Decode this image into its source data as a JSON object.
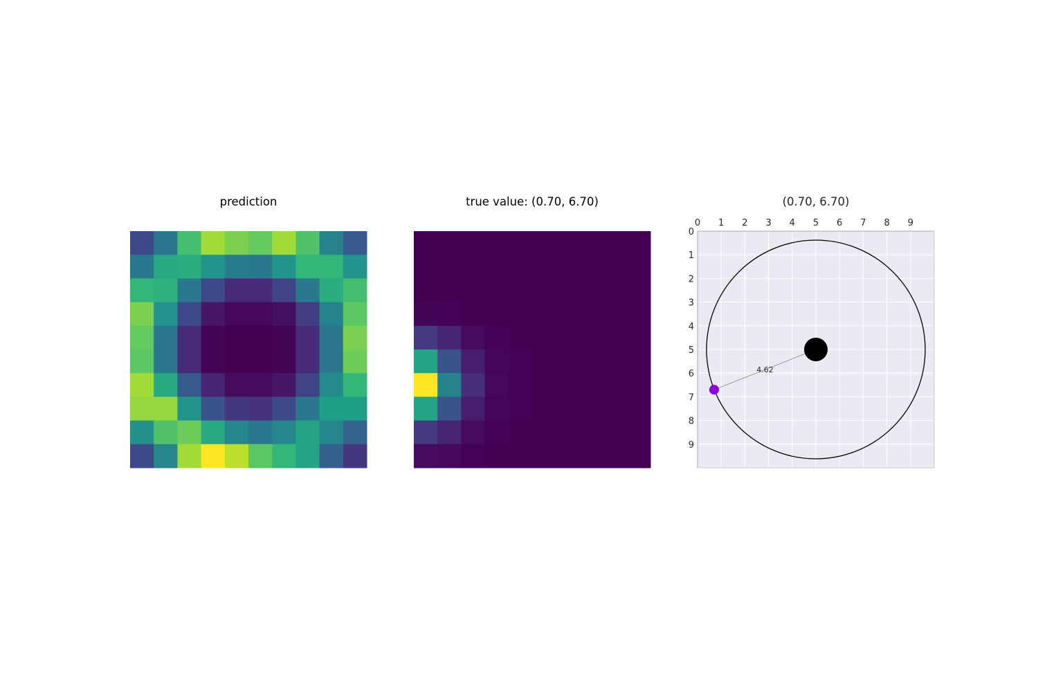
{
  "chart_data": [
    {
      "type": "heatmap",
      "title": "prediction",
      "colormap": "viridis",
      "rows": 10,
      "cols": 10,
      "values": [
        [
          0.22,
          0.4,
          0.7,
          0.86,
          0.8,
          0.76,
          0.86,
          0.72,
          0.45,
          0.28
        ],
        [
          0.4,
          0.6,
          0.62,
          0.52,
          0.42,
          0.4,
          0.52,
          0.66,
          0.66,
          0.52
        ],
        [
          0.66,
          0.64,
          0.4,
          0.22,
          0.12,
          0.12,
          0.2,
          0.4,
          0.62,
          0.7
        ],
        [
          0.8,
          0.52,
          0.22,
          0.06,
          0.02,
          0.02,
          0.04,
          0.18,
          0.45,
          0.74
        ],
        [
          0.76,
          0.4,
          0.12,
          0.01,
          0.0,
          0.0,
          0.01,
          0.12,
          0.4,
          0.8
        ],
        [
          0.74,
          0.4,
          0.12,
          0.01,
          0.0,
          0.0,
          0.01,
          0.12,
          0.4,
          0.78
        ],
        [
          0.86,
          0.6,
          0.28,
          0.1,
          0.03,
          0.03,
          0.06,
          0.2,
          0.48,
          0.66
        ],
        [
          0.84,
          0.84,
          0.52,
          0.26,
          0.16,
          0.14,
          0.22,
          0.4,
          0.56,
          0.56
        ],
        [
          0.5,
          0.72,
          0.78,
          0.6,
          0.46,
          0.4,
          0.46,
          0.58,
          0.46,
          0.32
        ],
        [
          0.22,
          0.46,
          0.86,
          1.0,
          0.9,
          0.74,
          0.66,
          0.58,
          0.3,
          0.16
        ]
      ]
    },
    {
      "type": "heatmap",
      "title": "true value: (0.70, 6.70)",
      "colormap": "viridis",
      "rows": 10,
      "cols": 10,
      "values": [
        [
          0,
          0,
          0,
          0,
          0,
          0,
          0,
          0,
          0,
          0
        ],
        [
          0,
          0,
          0,
          0,
          0,
          0,
          0,
          0,
          0,
          0
        ],
        [
          0,
          0,
          0,
          0,
          0,
          0,
          0,
          0,
          0,
          0
        ],
        [
          0.01,
          0.005,
          0,
          0,
          0,
          0,
          0,
          0,
          0,
          0
        ],
        [
          0.17,
          0.1,
          0.03,
          0.005,
          0,
          0,
          0,
          0,
          0,
          0
        ],
        [
          0.58,
          0.26,
          0.08,
          0.015,
          0.005,
          0,
          0,
          0,
          0,
          0
        ],
        [
          1.0,
          0.45,
          0.13,
          0.02,
          0.005,
          0,
          0,
          0,
          0,
          0
        ],
        [
          0.58,
          0.26,
          0.08,
          0.015,
          0.005,
          0,
          0,
          0,
          0,
          0
        ],
        [
          0.17,
          0.1,
          0.03,
          0.005,
          0,
          0,
          0,
          0,
          0,
          0
        ],
        [
          0.03,
          0.02,
          0.005,
          0,
          0,
          0,
          0,
          0,
          0,
          0
        ]
      ]
    },
    {
      "type": "scatter",
      "title": "(0.70, 6.70)",
      "x_ticks": [
        0,
        1,
        2,
        3,
        4,
        5,
        6,
        7,
        8,
        9
      ],
      "y_ticks": [
        0,
        1,
        2,
        3,
        4,
        5,
        6,
        7,
        8,
        9
      ],
      "xlim": [
        0,
        10
      ],
      "ylim": [
        10,
        0
      ],
      "x_axis_position": "top",
      "y_inverted": true,
      "grid": true,
      "background": "#eaeaf2",
      "center": {
        "x": 5,
        "y": 5,
        "color": "#000000"
      },
      "point": {
        "x": 0.7,
        "y": 6.7,
        "color": "#8800dd"
      },
      "circle": {
        "cx": 5,
        "cy": 5,
        "r": 4.62,
        "color": "#000000"
      },
      "annotation": {
        "text": "4.62"
      }
    }
  ]
}
